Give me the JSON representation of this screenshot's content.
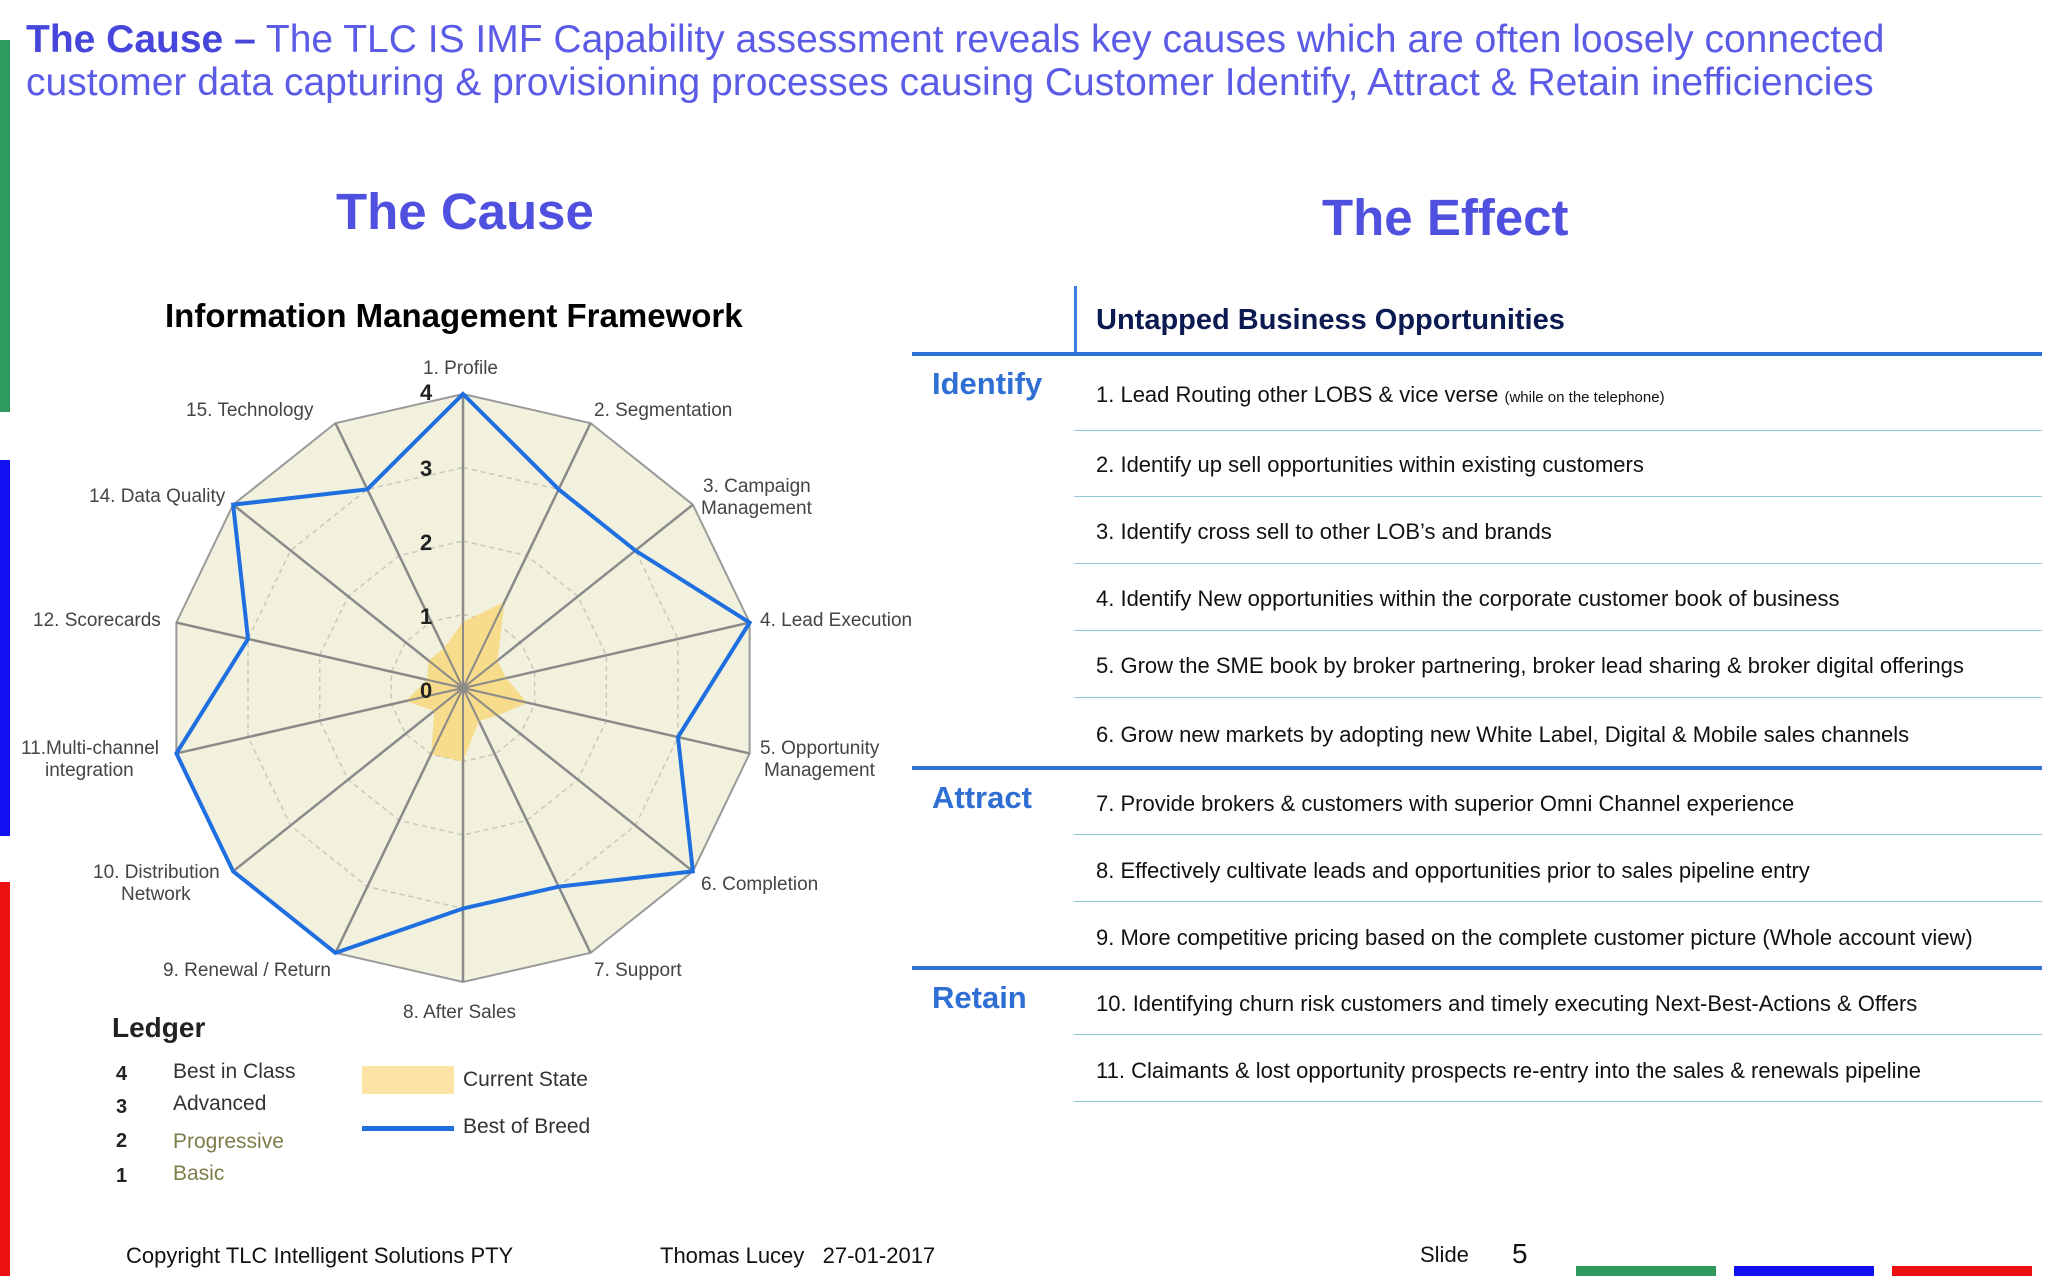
{
  "header": {
    "lead": "The Cause –",
    "text": " The TLC IS IMF Capability assessment reveals key causes which are often loosely connected customer data capturing & provisioning processes causing Customer Identify, Attract & Retain inefficiencies"
  },
  "cause_title": "The Cause",
  "effect_title": "The Effect",
  "imf_title": "Information Management Framework",
  "radar": {
    "spokes": [
      "1. Profile",
      "2. Segmentation",
      "3. Campaign",
      "Management",
      "4. Lead Execution",
      "5. Opportunity",
      "Management",
      "6. Completion",
      "7. Support",
      "8. After Sales",
      "9. Renewal / Return",
      "10. Distribution",
      "Network",
      "11.Multi-channel",
      "integration",
      "12. Scorecards",
      "14. Data Quality",
      "15. Technology"
    ],
    "ring_labels": [
      "0",
      "1",
      "2",
      "3",
      "4"
    ]
  },
  "chart_data": {
    "type": "radar",
    "categories": [
      "1. Profile",
      "2. Segmentation",
      "3. Campaign Management",
      "4. Lead Execution",
      "5. Opportunity Management",
      "6. Completion",
      "7. Support",
      "8. After Sales",
      "9. Renewal / Return",
      "10. Distribution Network",
      "11.Multi-channel integration",
      "12. Scorecards",
      "14. Data Quality",
      "15. Technology"
    ],
    "rlim": [
      0,
      4
    ],
    "series": [
      {
        "name": "Current State",
        "values": [
          0.9,
          1.3,
          0.6,
          0.6,
          0.9,
          0.6,
          0.5,
          1.0,
          1.0,
          0.5,
          0.8,
          0.5,
          0.6,
          0.6
        ],
        "color": "#f6d982"
      },
      {
        "name": "Best of Breed",
        "values": [
          4.0,
          3.0,
          3.0,
          4.0,
          3.0,
          4.0,
          3.0,
          3.0,
          4.0,
          4.0,
          4.0,
          3.0,
          4.0,
          3.0
        ],
        "color": "#1f6fe0"
      }
    ],
    "legend": "bottom-left"
  },
  "ledger": {
    "title": "Ledger",
    "rows": [
      {
        "num": "4",
        "label": "Best in Class",
        "color": "#333333"
      },
      {
        "num": "3",
        "label": "Advanced",
        "color": "#333333"
      },
      {
        "num": "2",
        "label": "Progressive",
        "color": "#7d7d4a"
      },
      {
        "num": "1",
        "label": "Basic",
        "color": "#7d7d4a"
      }
    ],
    "legend_current": "Current State",
    "legend_best": "Best of Breed"
  },
  "effect": {
    "header": "Untapped Business Opportunities",
    "sections": {
      "identify": "Identify",
      "attract": "Attract",
      "retain": "Retain"
    },
    "items": [
      "1. Lead Routing other LOBS & vice verse ",
      "2. Identify up sell opportunities within existing customers",
      "3. Identify cross sell to other LOB’s and brands",
      "4. Identify New opportunities within the corporate customer book of business",
      "5. Grow the SME book by broker partnering, broker lead sharing & broker digital offerings",
      "6. Grow new markets by adopting new White Label, Digital & Mobile sales channels",
      "7. Provide brokers & customers with superior Omni Channel experience",
      "8. Effectively cultivate leads and opportunities prior to sales pipeline entry",
      "9. More competitive pricing based on the complete customer picture (Whole account view)",
      "10. Identifying churn risk customers and timely executing Next-Best-Actions & Offers",
      "11. Claimants & lost opportunity prospects re-entry into the sales & renewals pipeline"
    ],
    "item1_note": "(while on the telephone)"
  },
  "footer": {
    "copyright": "Copyright TLC Intelligent Solutions PTY",
    "author_date": "Thomas Lucey   27-01-2017",
    "slide_label": "Slide",
    "slide_number": "5"
  },
  "colors": {
    "green": "#2f9a5e",
    "blue": "#1010f0",
    "red": "#ee1111"
  }
}
